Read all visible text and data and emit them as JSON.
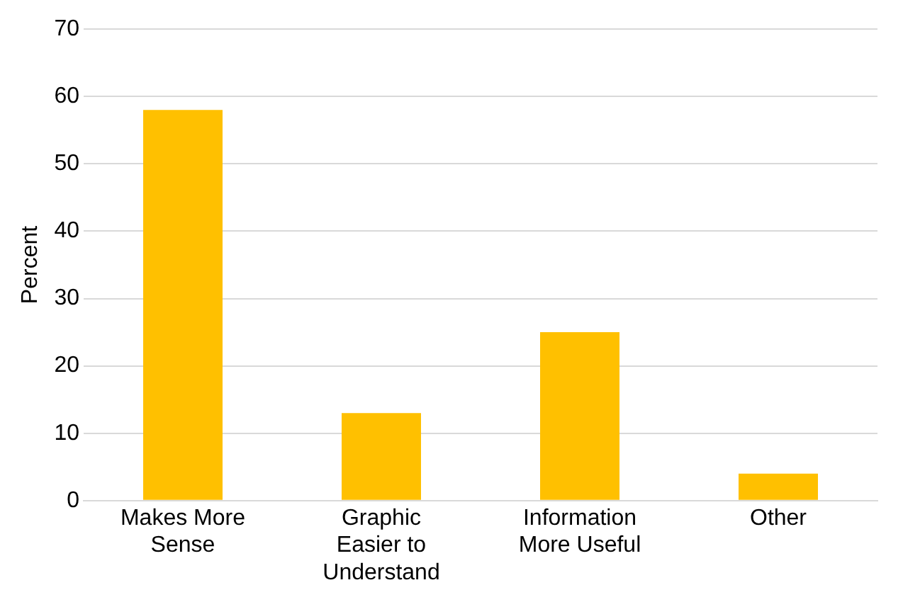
{
  "chart_data": {
    "type": "bar",
    "ylabel": "Percent",
    "categories": [
      "Makes More Sense",
      "Graphic Easier to Understand",
      "Information More Useful",
      "Other"
    ],
    "values": [
      58,
      13,
      25,
      4
    ],
    "color": "#ffc000",
    "ylim": [
      0,
      70
    ],
    "yticks": [
      0,
      10,
      20,
      30,
      40,
      50,
      60,
      70
    ],
    "grid": "y",
    "legend": false
  }
}
